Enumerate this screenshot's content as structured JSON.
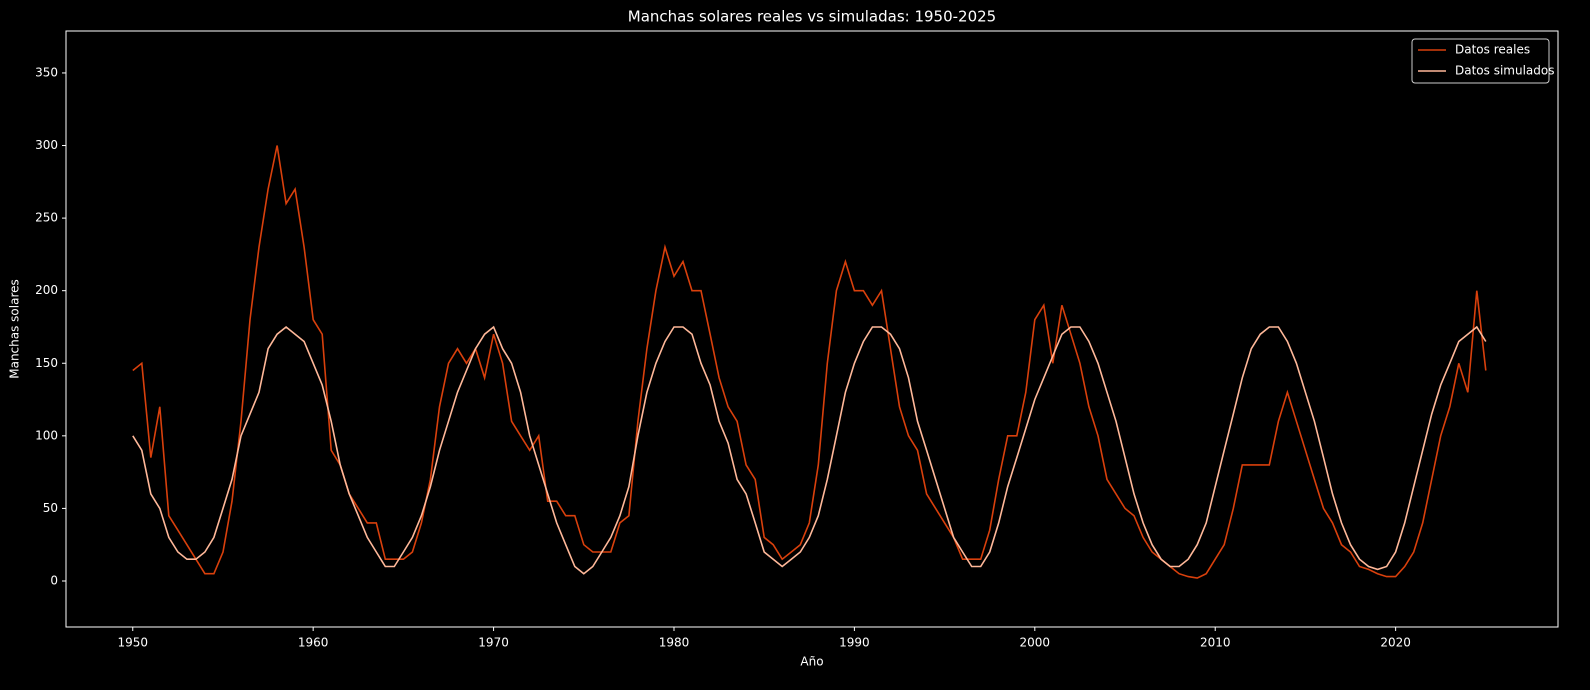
{
  "chart_data": {
    "type": "line",
    "title": "Manchas solares reales vs simuladas: 1950-2025",
    "x_label": "Año",
    "y_label": "Manchas solares",
    "x": [
      1950,
      1950.5,
      1951,
      1951.5,
      1952,
      1952.5,
      1953,
      1953.5,
      1954,
      1954.5,
      1955,
      1955.5,
      1956,
      1956.5,
      1957,
      1957.5,
      1958,
      1958.5,
      1959,
      1959.5,
      1960,
      1960.5,
      1961,
      1961.5,
      1962,
      1962.5,
      1963,
      1963.5,
      1964,
      1964.5,
      1965,
      1965.5,
      1966,
      1966.5,
      1967,
      1967.5,
      1968,
      1968.5,
      1969,
      1969.5,
      1970,
      1970.5,
      1971,
      1971.5,
      1972,
      1972.5,
      1973,
      1973.5,
      1974,
      1974.5,
      1975,
      1975.5,
      1976,
      1976.5,
      1977,
      1977.5,
      1978,
      1978.5,
      1979,
      1979.5,
      1980,
      1980.5,
      1981,
      1981.5,
      1982,
      1982.5,
      1983,
      1983.5,
      1984,
      1984.5,
      1985,
      1985.5,
      1986,
      1986.5,
      1987,
      1987.5,
      1988,
      1988.5,
      1989,
      1989.5,
      1990,
      1990.5,
      1991,
      1991.5,
      1992,
      1992.5,
      1993,
      1993.5,
      1994,
      1994.5,
      1995,
      1995.5,
      1996,
      1996.5,
      1997,
      1997.5,
      1998,
      1998.5,
      1999,
      1999.5,
      2000,
      2000.5,
      2001,
      2001.5,
      2002,
      2002.5,
      2003,
      2003.5,
      2004,
      2004.5,
      2005,
      2005.5,
      2006,
      2006.5,
      2007,
      2007.5,
      2008,
      2008.5,
      2009,
      2009.5,
      2010,
      2010.5,
      2011,
      2011.5,
      2012,
      2012.5,
      2013,
      2013.5,
      2014,
      2014.5,
      2015,
      2015.5,
      2016,
      2016.5,
      2017,
      2017.5,
      2018,
      2018.5,
      2019,
      2019.5,
      2020,
      2020.5,
      2021,
      2021.5,
      2022,
      2022.5,
      2023,
      2023.5,
      2024,
      2024.5,
      2025
    ],
    "series": [
      {
        "name": "Datos reales",
        "color": "#d9400c",
        "values": [
          145,
          150,
          85,
          120,
          45,
          35,
          25,
          15,
          5,
          5,
          20,
          55,
          110,
          180,
          230,
          270,
          300,
          260,
          270,
          230,
          180,
          170,
          90,
          80,
          60,
          50,
          40,
          40,
          15,
          15,
          15,
          20,
          40,
          70,
          120,
          150,
          160,
          150,
          160,
          140,
          170,
          150,
          110,
          100,
          90,
          100,
          55,
          55,
          45,
          45,
          25,
          20,
          20,
          20,
          40,
          45,
          110,
          160,
          200,
          230,
          210,
          220,
          200,
          200,
          170,
          140,
          120,
          110,
          80,
          70,
          30,
          25,
          15,
          20,
          25,
          40,
          80,
          150,
          200,
          220,
          200,
          200,
          190,
          200,
          160,
          120,
          100,
          90,
          60,
          50,
          40,
          30,
          15,
          15,
          15,
          35,
          70,
          100,
          100,
          130,
          180,
          190,
          150,
          190,
          170,
          150,
          120,
          100,
          70,
          60,
          50,
          45,
          30,
          20,
          15,
          10,
          5,
          3,
          2,
          5,
          15,
          25,
          50,
          80,
          80,
          80,
          80,
          110,
          130,
          110,
          90,
          70,
          50,
          40,
          25,
          20,
          10,
          8,
          5,
          3,
          3,
          10,
          20,
          40,
          70,
          100,
          120,
          150,
          130,
          200,
          145
        ]
      },
      {
        "name": "Datos simulados",
        "color": "#ffb899",
        "values": [
          100,
          90,
          60,
          50,
          30,
          20,
          15,
          15,
          20,
          30,
          50,
          70,
          100,
          115,
          130,
          160,
          170,
          175,
          170,
          165,
          150,
          135,
          110,
          80,
          60,
          45,
          30,
          20,
          10,
          10,
          20,
          30,
          45,
          65,
          90,
          110,
          130,
          145,
          160,
          170,
          175,
          160,
          150,
          130,
          100,
          80,
          60,
          40,
          25,
          10,
          5,
          10,
          20,
          30,
          45,
          65,
          100,
          130,
          150,
          165,
          175,
          175,
          170,
          150,
          135,
          110,
          95,
          70,
          60,
          40,
          20,
          15,
          10,
          15,
          20,
          30,
          45,
          70,
          100,
          130,
          150,
          165,
          175,
          175,
          170,
          160,
          140,
          110,
          90,
          70,
          50,
          30,
          20,
          10,
          10,
          20,
          40,
          65,
          85,
          105,
          125,
          140,
          155,
          170,
          175,
          175,
          165,
          150,
          130,
          110,
          85,
          60,
          40,
          25,
          15,
          10,
          10,
          15,
          25,
          40,
          65,
          90,
          115,
          140,
          160,
          170,
          175,
          175,
          165,
          150,
          130,
          110,
          85,
          60,
          40,
          25,
          15,
          10,
          8,
          10,
          20,
          40,
          65,
          90,
          115,
          135,
          150,
          165,
          170,
          175,
          165
        ]
      }
    ],
    "xlim": [
      1946.3,
      2029.0
    ],
    "xticks": [
      1950,
      1960,
      1970,
      1980,
      1990,
      2000,
      2010,
      2020
    ],
    "ylim": [
      -31.7,
      378.9
    ],
    "yticks": [
      0,
      50,
      100,
      150,
      200,
      250,
      300,
      350
    ],
    "legend": "upper right"
  }
}
